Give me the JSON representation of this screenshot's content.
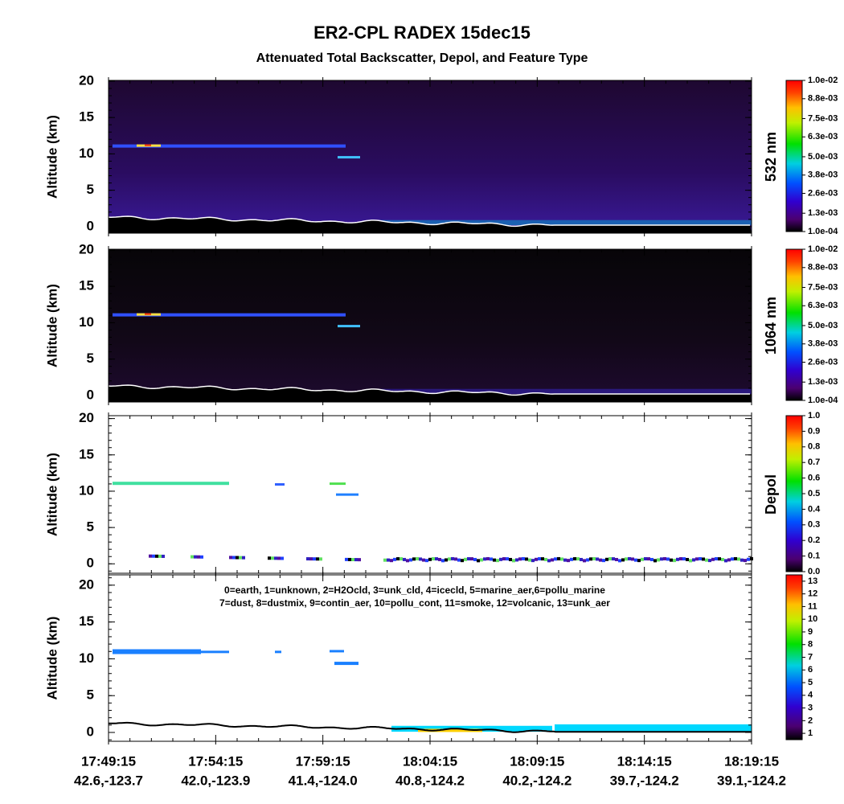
{
  "title": "ER2-CPL RADEX 15dec15",
  "subtitle": "Attenuated Total Backscatter, Depol, and Feature Type",
  "x_axis": [
    {
      "time": "17:49:15",
      "location": "42.6,-123.7"
    },
    {
      "time": "17:54:15",
      "location": "42.0,-123.9"
    },
    {
      "time": "17:59:15",
      "location": "41.4,-124.0"
    },
    {
      "time": "18:04:15",
      "location": "40.8,-124.2"
    },
    {
      "time": "18:09:15",
      "location": "40.2,-124.2"
    },
    {
      "time": "18:14:15",
      "location": "39.7,-124.2"
    },
    {
      "time": "18:19:15",
      "location": "39.1,-124.2"
    }
  ],
  "chart_data": [
    {
      "type": "heatmap",
      "ylabel": "Altitude (km)",
      "ylim": [
        -0.9,
        20.1
      ],
      "yticks": [
        0,
        5,
        10,
        15,
        20
      ],
      "colorbar": {
        "label": "532 nm",
        "lim": [
          0.0001,
          0.01
        ],
        "ticks": [
          {
            "value": 0.0001,
            "label": "1.0e-04"
          },
          {
            "value": 0.0013,
            "label": "1.3e-03"
          },
          {
            "value": 0.0026,
            "label": "2.6e-03"
          },
          {
            "value": 0.0038,
            "label": "3.8e-03"
          },
          {
            "value": 0.005,
            "label": "5.0e-03"
          },
          {
            "value": 0.0063,
            "label": "6.3e-03"
          },
          {
            "value": 0.0075,
            "label": "7.5e-03"
          },
          {
            "value": 0.0088,
            "label": "8.8e-03"
          },
          {
            "value": 0.01,
            "label": "1.0e-02"
          }
        ]
      }
    },
    {
      "type": "heatmap",
      "ylabel": "Altitude (km)",
      "ylim": [
        -0.9,
        20.1
      ],
      "yticks": [
        0,
        5,
        10,
        15,
        20
      ],
      "colorbar": {
        "label": "1064 nm",
        "lim": [
          0.0001,
          0.01
        ],
        "ticks": [
          {
            "value": 0.0001,
            "label": "1.0e-04"
          },
          {
            "value": 0.0013,
            "label": "1.3e-03"
          },
          {
            "value": 0.0026,
            "label": "2.6e-03"
          },
          {
            "value": 0.0038,
            "label": "3.8e-03"
          },
          {
            "value": 0.005,
            "label": "5.0e-03"
          },
          {
            "value": 0.0063,
            "label": "6.3e-03"
          },
          {
            "value": 0.0075,
            "label": "7.5e-03"
          },
          {
            "value": 0.0088,
            "label": "8.8e-03"
          },
          {
            "value": 0.01,
            "label": "1.0e-02"
          }
        ]
      }
    },
    {
      "type": "heatmap",
      "ylabel": "Altitude (km)",
      "ylim": [
        -1.3,
        20.4
      ],
      "yticks": [
        0,
        5,
        10,
        15,
        20
      ],
      "colorbar": {
        "label": "Depol",
        "lim": [
          0,
          1
        ],
        "ticks": [
          {
            "value": 0,
            "label": "0.0"
          },
          {
            "value": 0.1,
            "label": "0.1"
          },
          {
            "value": 0.2,
            "label": "0.2"
          },
          {
            "value": 0.3,
            "label": "0.3"
          },
          {
            "value": 0.4,
            "label": "0.4"
          },
          {
            "value": 0.5,
            "label": "0.5"
          },
          {
            "value": 0.6,
            "label": "0.6"
          },
          {
            "value": 0.7,
            "label": "0.7"
          },
          {
            "value": 0.8,
            "label": "0.8"
          },
          {
            "value": 0.9,
            "label": "0.9"
          },
          {
            "value": 1,
            "label": "1.0"
          }
        ]
      }
    },
    {
      "type": "heatmap",
      "ylabel": "Altitude (km)",
      "ylim": [
        -1.2,
        21.4
      ],
      "yticks": [
        0,
        5,
        10,
        15,
        20
      ],
      "legend": [
        "0=earth, 1=unknown, 2=H2Ocld, 3=unk_cld, 4=icecld, 5=marine_aer,6=pollu_marine",
        "7=dust, 8=dustmix, 9=contin_aer, 10=pollu_cont, 11=smoke, 12=volcanic, 13=unk_aer"
      ],
      "colorbar": {
        "lim": [
          0.5,
          13.5
        ],
        "ticks": [
          1,
          2,
          3,
          4,
          5,
          6,
          7,
          8,
          9,
          10,
          11,
          12,
          13
        ]
      }
    }
  ]
}
